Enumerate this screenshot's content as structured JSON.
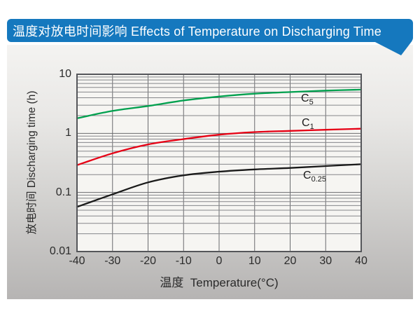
{
  "banner": {
    "title": "温度对放电时间影响 Effects of Temperature on Discharging Time",
    "bg_color": "#1578BE",
    "text_color": "#FFFFFF"
  },
  "chart_data": {
    "type": "line",
    "title": "Effects of Temperature on Discharging Time",
    "xlabel": "温度  Temperature(°C)",
    "ylabel": "放电时间 Discharging time (h)",
    "grid": true,
    "x_axis": {
      "min": -40,
      "max": 40,
      "tick_step": 10,
      "ticks": [
        {
          "value": -40,
          "label": "-40"
        },
        {
          "value": -30,
          "label": "-30"
        },
        {
          "value": -20,
          "label": "-20"
        },
        {
          "value": -10,
          "label": "-10"
        },
        {
          "value": 0,
          "label": "0"
        },
        {
          "value": 10,
          "label": "10"
        },
        {
          "value": 20,
          "label": "20"
        },
        {
          "value": 30,
          "label": "30"
        },
        {
          "value": 40,
          "label": "40"
        }
      ]
    },
    "y_axis": {
      "scale": "log",
      "min": 0.01,
      "max": 10,
      "ticks": [
        {
          "value": 10,
          "label": "10"
        },
        {
          "value": 1,
          "label": "1"
        },
        {
          "value": 0.1,
          "label": "0.1"
        },
        {
          "value": 0.01,
          "label": "0.01"
        }
      ]
    },
    "x": [
      -40,
      -30,
      -20,
      -10,
      0,
      10,
      20,
      30,
      40
    ],
    "series": [
      {
        "name": "C5",
        "label_main": "C",
        "label_sub": "5",
        "color": "#00A04E",
        "values": [
          1.8,
          2.4,
          2.9,
          3.6,
          4.2,
          4.7,
          5.0,
          5.3,
          5.5
        ]
      },
      {
        "name": "C1",
        "label_main": "C",
        "label_sub": "1",
        "color": "#E60014",
        "values": [
          0.29,
          0.46,
          0.65,
          0.8,
          0.95,
          1.05,
          1.1,
          1.15,
          1.2
        ]
      },
      {
        "name": "C0.25",
        "label_main": "C",
        "label_sub": "0.25",
        "color": "#1A1A1A",
        "values": [
          0.057,
          0.093,
          0.148,
          0.195,
          0.225,
          0.245,
          0.26,
          0.28,
          0.3
        ]
      }
    ]
  }
}
